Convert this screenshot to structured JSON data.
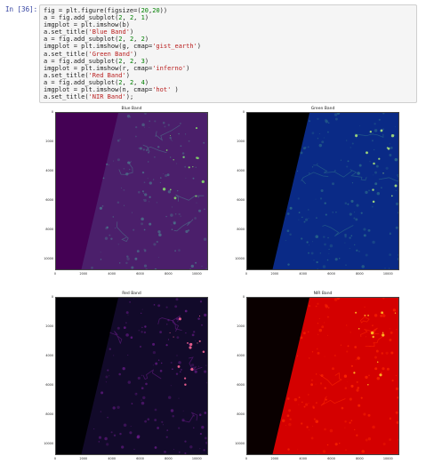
{
  "cell": {
    "prompt": "In [36]:",
    "code_lines": [
      "fig = plt.figure(figsize=(20,20))",
      "a = fig.add_subplot(2, 2, 1)",
      "imgplot = plt.imshow(b)",
      "a.set_title('Blue Band')",
      "a = fig.add_subplot(2, 2, 2)",
      "imgplot = plt.imshow(g, cmap='gist_earth')",
      "a.set_title('Green Band')",
      "a = fig.add_subplot(2, 2, 3)",
      "imgplot = plt.imshow(r, cmap='inferno')",
      "a.set_title('Red Band')",
      "a = fig.add_subplot(2, 2, 4)",
      "imgplot = plt.imshow(n, cmap='hot' )",
      "a.set_title('NIR Band');"
    ]
  },
  "figure": {
    "panels": [
      {
        "title": "Blue Band",
        "cmap": "viridis",
        "bg": "#4b1f6b",
        "left": "#440154",
        "fg": "#4c7a8e",
        "sparkle": "#7ec86a"
      },
      {
        "title": "Green Band",
        "cmap": "gist_earth",
        "bg": "#0a2a86",
        "left": "#000000",
        "fg": "#2d6f8a",
        "sparkle": "#9ad07a"
      },
      {
        "title": "Red Band",
        "cmap": "inferno",
        "bg": "#120a2a",
        "left": "#000004",
        "fg": "#6a1c8a",
        "sparkle": "#e05a8a"
      },
      {
        "title": "NIR Band",
        "cmap": "hot",
        "bg": "#d40000",
        "left": "#0a0000",
        "fg": "#ff2a00",
        "sparkle": "#ffb020"
      }
    ],
    "y_ticks_a": [
      "0",
      "2000",
      "4000",
      "6000",
      "8000",
      "10000"
    ],
    "y_ticks_b": [
      "0",
      "2000",
      "4000",
      "6000",
      "8000",
      "10000"
    ],
    "x_ticks": [
      "0",
      "2000",
      "4000",
      "6000",
      "8000",
      "10000"
    ]
  }
}
